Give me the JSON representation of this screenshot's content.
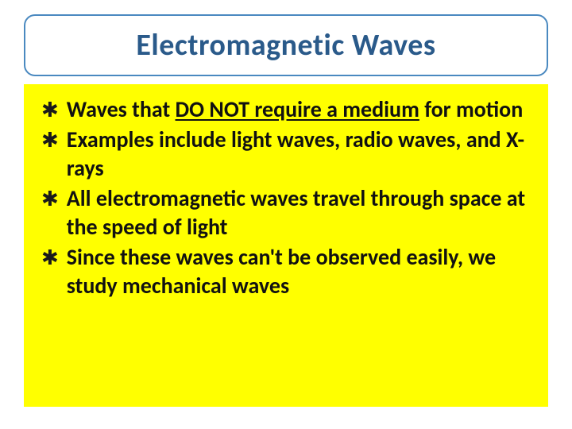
{
  "slide": {
    "title": "Electromagnetic Waves",
    "title_color": "#2a5a8a",
    "title_fontsize": 38,
    "title_box": {
      "background": "#ffffff",
      "border_color": "#4a89c0",
      "border_width": 2,
      "border_radius": 14
    },
    "content_box": {
      "background": "#ffff00",
      "padding": 18
    },
    "bullet_marker": "✱",
    "bullets": [
      {
        "segments": [
          {
            "text": "Waves that ",
            "underline": false
          },
          {
            "text": "DO NOT require a medium",
            "underline": true
          },
          {
            "text": " for motion",
            "underline": false
          }
        ]
      },
      {
        "segments": [
          {
            "text": "Examples include light waves, radio waves, and X-rays",
            "underline": false
          }
        ]
      },
      {
        "segments": [
          {
            "text": "All electromagnetic waves travel through space at the speed of light",
            "underline": false
          }
        ]
      },
      {
        "segments": [
          {
            "text": "Since these waves can't be observed easily, we study mechanical waves",
            "underline": false
          }
        ]
      }
    ],
    "bullet_fontsize": 28,
    "bullet_fontweight": "bold",
    "bullet_color": "#111111",
    "background_color": "#ffffff"
  }
}
